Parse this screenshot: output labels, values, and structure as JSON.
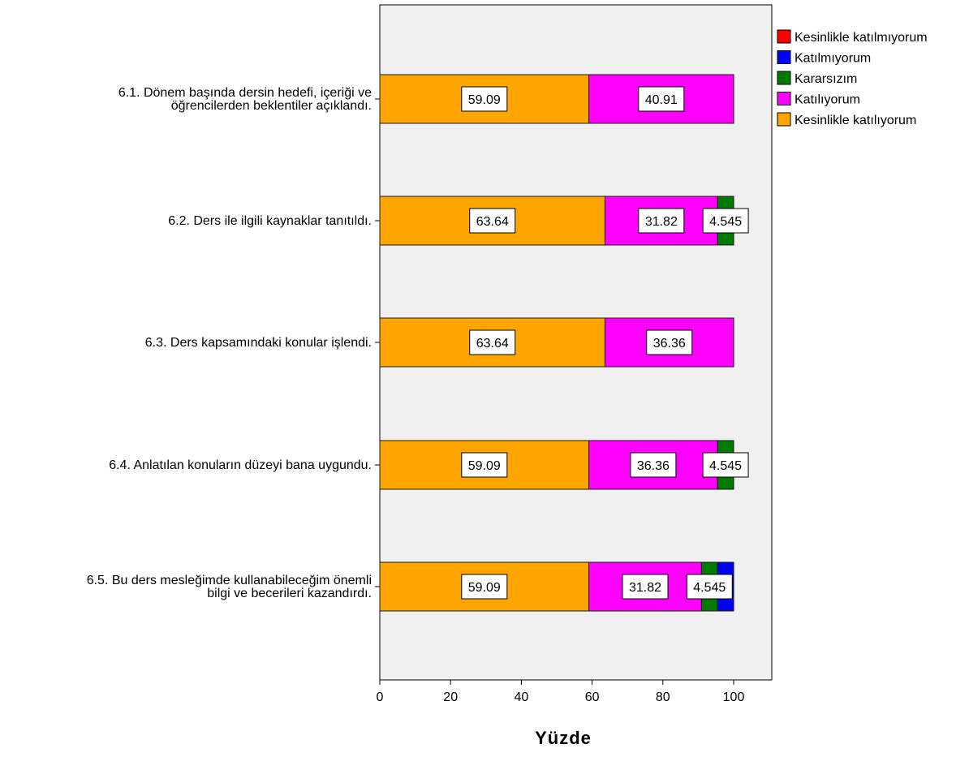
{
  "chart_data": {
    "type": "bar",
    "orientation": "horizontal",
    "stacked": true,
    "title": "",
    "xlabel": "Yüzde",
    "ylabel": "",
    "xlim": [
      0,
      100
    ],
    "x_ticks": [
      "0",
      "20",
      "40",
      "60",
      "80",
      "100"
    ],
    "grid": false,
    "legend_position": "right",
    "categories": [
      [
        "6.1. Dönem başında dersin hedefi, içeriği ve",
        "öğrencilerden beklentiler açıklandı."
      ],
      [
        "6.2. Ders ile ilgili kaynaklar tanıtıldı."
      ],
      [
        "6.3. Ders kapsamındaki konular işlendi."
      ],
      [
        "6.4. Anlatılan konuların düzeyi bana uygundu."
      ],
      [
        "6.5. Bu ders mesleğimde kullanabileceğim önemli",
        "bilgi ve becerileri kazandırdı."
      ]
    ],
    "stack_order": [
      "Kesinlikle katılıyorum",
      "Katılıyorum",
      "Kararsızım",
      "Katılmıyorum",
      "Kesinlikle katılmıyorum"
    ],
    "series": [
      {
        "name": "Kesinlikle katılmıyorum",
        "color": "#ff0000",
        "values": [
          0,
          0,
          0,
          0,
          0
        ]
      },
      {
        "name": "Katılmıyorum",
        "color": "#0000ff",
        "values": [
          0,
          0,
          0,
          0,
          4.545
        ]
      },
      {
        "name": "Kararsızım",
        "color": "#007a00",
        "values": [
          0,
          4.545,
          0,
          4.545,
          4.545
        ]
      },
      {
        "name": "Katılıyorum",
        "color": "#ff00ff",
        "values": [
          40.91,
          31.82,
          36.36,
          36.36,
          31.82
        ]
      },
      {
        "name": "Kesinlikle katılıyorum",
        "color": "#ffa500",
        "values": [
          59.09,
          63.64,
          63.64,
          59.09,
          59.09
        ]
      }
    ],
    "data_labels": [
      [
        {
          "series": "Kesinlikle katılıyorum",
          "text": "59.09"
        },
        {
          "series": "Katılıyorum",
          "text": "40.91"
        }
      ],
      [
        {
          "series": "Kesinlikle katılıyorum",
          "text": "63.64"
        },
        {
          "series": "Katılıyorum",
          "text": "31.82"
        },
        {
          "series": "Kararsızım",
          "text": "4.545"
        }
      ],
      [
        {
          "series": "Kesinlikle katılıyorum",
          "text": "63.64"
        },
        {
          "series": "Katılıyorum",
          "text": "36.36"
        }
      ],
      [
        {
          "series": "Kesinlikle katılıyorum",
          "text": "59.09"
        },
        {
          "series": "Katılıyorum",
          "text": "36.36"
        },
        {
          "series": "Kararsızım",
          "text": "4.545"
        }
      ],
      [
        {
          "series": "Kesinlikle katılıyorum",
          "text": "59.09"
        },
        {
          "series": "Katılıyorum",
          "text": "31.82"
        },
        {
          "series": "Kararsızım",
          "text": "4.545"
        }
      ]
    ],
    "plot_background": "#f0f0f0"
  }
}
